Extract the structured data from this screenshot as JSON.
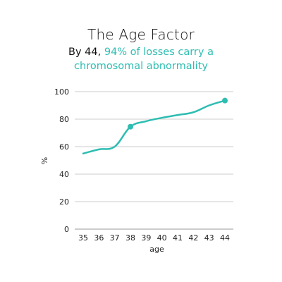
{
  "title": "The Age Factor",
  "subtitle": {
    "lead": "By 44, ",
    "highlight": "94% of losses carry a chromosomal abnormality"
  },
  "colors": {
    "line": "#2ebdb2",
    "grid": "#cccccc",
    "text": "#222222"
  },
  "chart_data": {
    "type": "line",
    "title": "The Age Factor",
    "xlabel": "age",
    "ylabel": "%",
    "x": [
      35,
      36,
      37,
      38,
      39,
      40,
      41,
      42,
      43,
      44
    ],
    "series": [
      {
        "values": [
          55,
          58,
          60,
          74.5,
          78.5,
          81,
          83,
          85,
          90,
          93.5
        ]
      }
    ],
    "highlighted_points": [
      {
        "x": 38,
        "y": 74.5
      },
      {
        "x": 44,
        "y": 93.5
      }
    ],
    "ylim": [
      0,
      100
    ],
    "yticks": [
      0,
      20,
      40,
      60,
      80,
      100
    ],
    "grid": "horizontal"
  }
}
